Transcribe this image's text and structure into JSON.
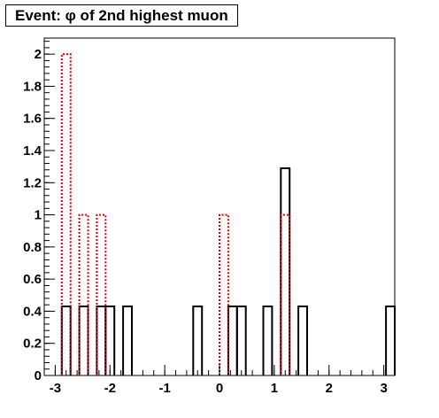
{
  "chart_data": {
    "type": "bar",
    "title": "Event: φ of 2nd highest muon",
    "xlabel": "",
    "ylabel": "",
    "xlim": [
      -3.2,
      3.2
    ],
    "ylim": [
      0,
      2.1
    ],
    "bin_width": 0.16,
    "grid": false,
    "legend": "none",
    "x_ticks": [
      -3,
      -2,
      -1,
      0,
      1,
      2,
      3
    ],
    "y_ticks": [
      0,
      0.2,
      0.4,
      0.6,
      0.8,
      1,
      1.2,
      1.4,
      1.6,
      1.8,
      2
    ],
    "series": [
      {
        "style": "solid",
        "color": "#000000",
        "bins": [
          {
            "x": -2.8,
            "value": 0.43
          },
          {
            "x": -2.48,
            "value": 0.43
          },
          {
            "x": -2.16,
            "value": 0.43
          },
          {
            "x": -2.0,
            "value": 0.43
          },
          {
            "x": -1.68,
            "value": 0.43
          },
          {
            "x": -0.4,
            "value": 0.43
          },
          {
            "x": 0.24,
            "value": 0.43
          },
          {
            "x": 0.4,
            "value": 0.43
          },
          {
            "x": 0.88,
            "value": 0.43
          },
          {
            "x": 1.2,
            "value": 1.29
          },
          {
            "x": 1.52,
            "value": 0.43
          },
          {
            "x": 3.12,
            "value": 0.43
          }
        ]
      },
      {
        "style": "dotted",
        "color": "#dd0000",
        "bins": [
          {
            "x": -2.8,
            "value": 2
          },
          {
            "x": -2.48,
            "value": 1
          },
          {
            "x": -2.16,
            "value": 1
          },
          {
            "x": 0.08,
            "value": 1
          },
          {
            "x": 1.2,
            "value": 1
          }
        ]
      }
    ]
  }
}
